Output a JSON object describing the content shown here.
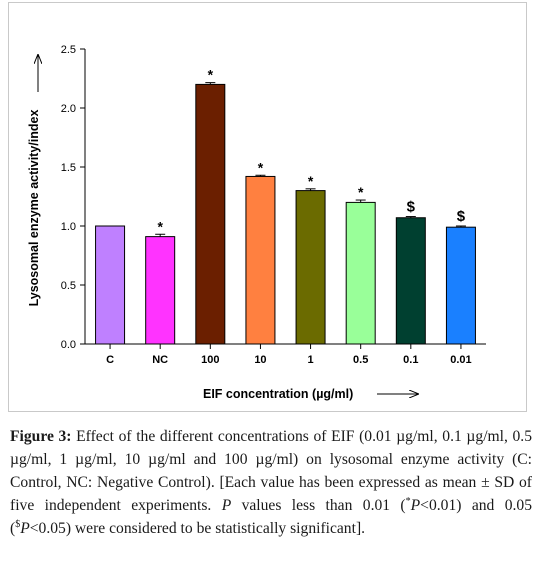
{
  "chart_data": {
    "type": "bar",
    "categories": [
      "C",
      "NC",
      "100",
      "10",
      "1",
      "0.5",
      "0.1",
      "0.01"
    ],
    "values": [
      1.0,
      0.91,
      2.2,
      1.42,
      1.3,
      1.2,
      1.07,
      0.99
    ],
    "errors": [
      0.0,
      0.02,
      0.015,
      0.01,
      0.015,
      0.02,
      0.01,
      0.01
    ],
    "annotations": [
      "",
      "*",
      "*",
      "*",
      "*",
      "*",
      "$",
      "$"
    ],
    "colors": [
      "#bf80ff",
      "#ff33ff",
      "#6b1f00",
      "#ff8040",
      "#6b6b00",
      "#99ff99",
      "#004030",
      "#1a80ff"
    ],
    "xlabel": "EIF concentration (µg/ml)",
    "ylabel": "Lysosomal enzyme activity/index",
    "ylim": [
      0.0,
      2.5
    ],
    "yticks": [
      "0.0",
      "0.5",
      "1.0",
      "1.5",
      "2.0",
      "2.5"
    ],
    "grid": false
  },
  "caption": {
    "label": "Figure 3:",
    "part1": " Effect of the different concentrations of EIF (0.01 µg/ml, 0.1 µg/ml, 0.5 µg/ml, 1 µg/ml, 10 µg/ml and 100 µg/ml) on lysosomal enzyme activity (C: Control, NC: Negative Control). [Each value has been expressed as mean ± SD of five independent experiments. ",
    "p1": "P",
    "part2": " values less than 0.01 (",
    "star": "*",
    "p2": "P",
    "part3": "<0.01) and 0.05 (",
    "dollar": "$",
    "p3": "P",
    "part4": "<0.05) were considered to be statistically significant]."
  }
}
